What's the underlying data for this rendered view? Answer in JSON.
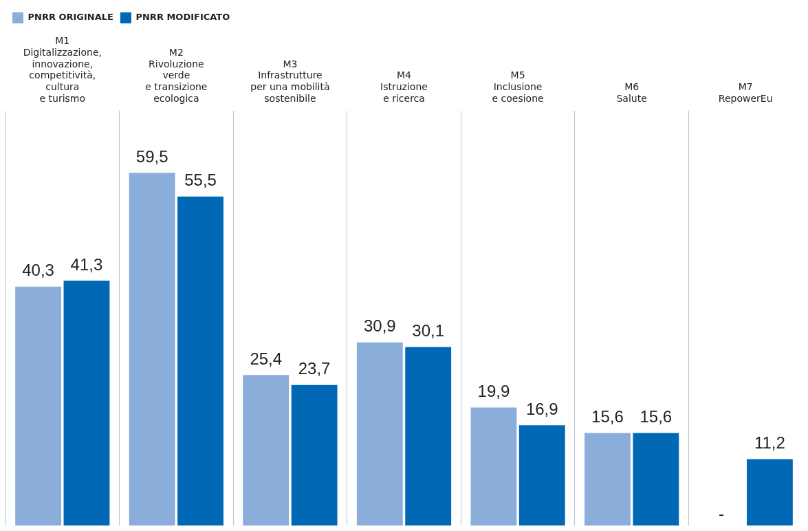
{
  "chart_data": {
    "type": "bar",
    "categories": [
      "M1\nDigitalizzazione,\ninnovazione,\ncompetitività,\ncultura\ne turismo",
      "M2\nRivoluzione\nverde\ne transizione\necologica",
      "M3\nInfrastrutture\nper una mobilità\nsostenibile",
      "M4\nIstruzione\ne ricerca",
      "M5\nInclusione\ne coesione",
      "M6\nSalute",
      "M7\nRepowerEu"
    ],
    "series": [
      {
        "name": "PNRR ORIGINALE",
        "color": "#8aadd9",
        "values": [
          40.3,
          59.5,
          25.4,
          30.9,
          19.9,
          15.6,
          null
        ],
        "value_labels": [
          "40,3",
          "59,5",
          "25,4",
          "30,9",
          "19,9",
          "15,6",
          "-"
        ]
      },
      {
        "name": "PNRR MODIFICATO",
        "color": "#0068b4",
        "values": [
          41.3,
          55.5,
          23.7,
          30.1,
          16.9,
          15.6,
          11.2
        ],
        "value_labels": [
          "41,3",
          "55,5",
          "23,7",
          "30,1",
          "16,9",
          "15,6",
          "11,2"
        ]
      }
    ],
    "grid": "x",
    "legend": "top left"
  }
}
